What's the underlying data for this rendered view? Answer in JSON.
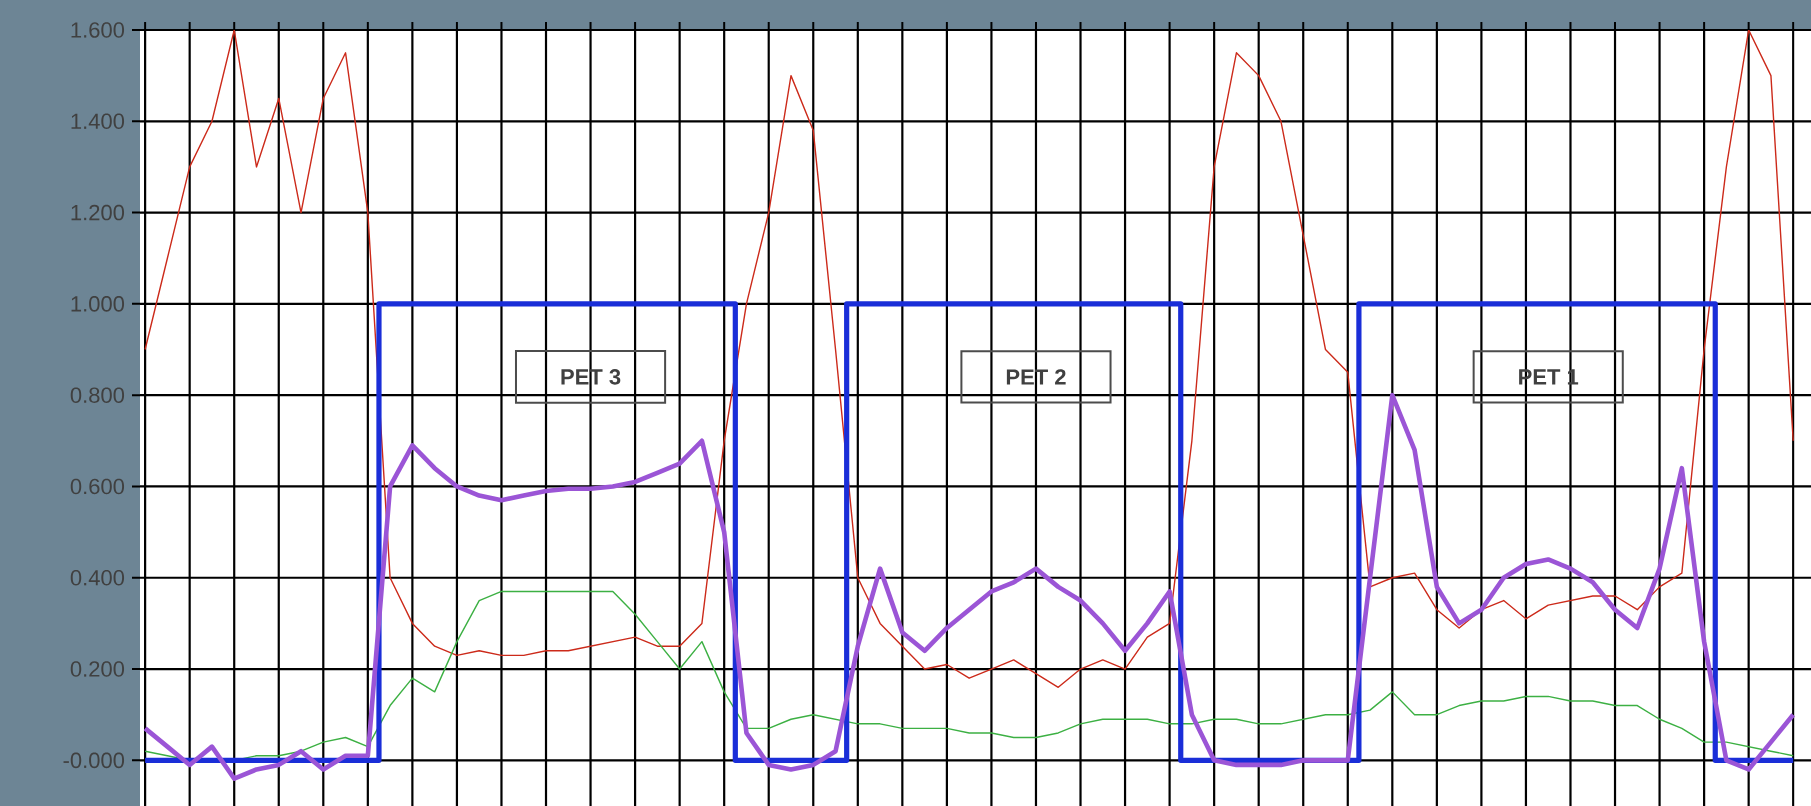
{
  "chart_data": {
    "type": "line",
    "categories": [
      null,
      null,
      null,
      null,
      null,
      null,
      null,
      null,
      null,
      null,
      null,
      null,
      null,
      null,
      null,
      null,
      null,
      null,
      null,
      null,
      null,
      null,
      null,
      null,
      null,
      null,
      null,
      null,
      null,
      null,
      null,
      null,
      null,
      null,
      null,
      null,
      null,
      null,
      null,
      null,
      null,
      null,
      null,
      null,
      null,
      null,
      null,
      null,
      null,
      null,
      null,
      null,
      null,
      null,
      null,
      null,
      null,
      null,
      null,
      null,
      null,
      null,
      null,
      null,
      null,
      null,
      null,
      null,
      null,
      null,
      null,
      null,
      null,
      null,
      null
    ],
    "series": [
      {
        "color": "#cc2a1a",
        "values": [
          0.9,
          1.1,
          1.3,
          1.4,
          1.6,
          1.3,
          1.45,
          1.2,
          1.45,
          1.55,
          1.2,
          0.4,
          0.3,
          0.25,
          0.23,
          0.24,
          0.23,
          0.23,
          0.24,
          0.24,
          0.25,
          0.26,
          0.27,
          0.25,
          0.25,
          0.3,
          0.7,
          1.0,
          1.2,
          1.5,
          1.38,
          0.9,
          0.4,
          0.3,
          0.25,
          0.2,
          0.21,
          0.18,
          0.2,
          0.22,
          0.19,
          0.16,
          0.2,
          0.22,
          0.2,
          0.27,
          0.3,
          0.7,
          1.3,
          1.55,
          1.5,
          1.4,
          1.15,
          0.9,
          0.85,
          0.38,
          0.4,
          0.41,
          0.33,
          0.29,
          0.33,
          0.35,
          0.31,
          0.34,
          0.35,
          0.36,
          0.36,
          0.33,
          0.38,
          0.41,
          0.9,
          1.3,
          1.6,
          1.5,
          0.7
        ]
      },
      {
        "color": "#3cb043",
        "values": [
          0.02,
          0.01,
          0.0,
          0.0,
          0.0,
          0.01,
          0.01,
          0.02,
          0.04,
          0.05,
          0.03,
          0.12,
          0.18,
          0.15,
          0.26,
          0.35,
          0.37,
          0.37,
          0.37,
          0.37,
          0.37,
          0.37,
          0.32,
          0.26,
          0.2,
          0.26,
          0.15,
          0.07,
          0.07,
          0.09,
          0.1,
          0.09,
          0.08,
          0.08,
          0.07,
          0.07,
          0.07,
          0.06,
          0.06,
          0.05,
          0.05,
          0.06,
          0.08,
          0.09,
          0.09,
          0.09,
          0.08,
          0.08,
          0.09,
          0.09,
          0.08,
          0.08,
          0.09,
          0.1,
          0.1,
          0.11,
          0.15,
          0.1,
          0.1,
          0.12,
          0.13,
          0.13,
          0.14,
          0.14,
          0.13,
          0.13,
          0.12,
          0.12,
          0.09,
          0.07,
          0.04,
          0.04,
          0.03,
          0.02,
          0.01
        ]
      },
      {
        "type": "step",
        "color": "#1a2ed8",
        "values": [
          0,
          0,
          0,
          0,
          0,
          0,
          0,
          0,
          0,
          0,
          0,
          1,
          1,
          1,
          1,
          1,
          1,
          1,
          1,
          1,
          1,
          1,
          1,
          1,
          1,
          1,
          1,
          0,
          0,
          0,
          0,
          0,
          1,
          1,
          1,
          1,
          1,
          1,
          1,
          1,
          1,
          1,
          1,
          1,
          1,
          1,
          1,
          0,
          0,
          0,
          0,
          0,
          0,
          0,
          0,
          1,
          1,
          1,
          1,
          1,
          1,
          1,
          1,
          1,
          1,
          1,
          1,
          1,
          1,
          1,
          1,
          0,
          0,
          0,
          0
        ]
      },
      {
        "color": "#9b55d6",
        "values": [
          0.07,
          0.03,
          -0.01,
          0.03,
          -0.04,
          -0.02,
          -0.01,
          0.02,
          -0.02,
          0.01,
          0.01,
          0.6,
          0.69,
          0.64,
          0.6,
          0.58,
          0.57,
          0.58,
          0.59,
          0.595,
          0.595,
          0.6,
          0.61,
          0.63,
          0.65,
          0.7,
          0.5,
          0.06,
          -0.01,
          -0.02,
          -0.01,
          0.02,
          0.25,
          0.42,
          0.28,
          0.24,
          0.29,
          0.33,
          0.37,
          0.39,
          0.42,
          0.38,
          0.35,
          0.3,
          0.24,
          0.3,
          0.37,
          0.1,
          0.0,
          -0.01,
          -0.01,
          -0.01,
          0.0,
          0.0,
          0.0,
          0.4,
          0.8,
          0.68,
          0.38,
          0.3,
          0.33,
          0.4,
          0.43,
          0.44,
          0.42,
          0.39,
          0.33,
          0.29,
          0.42,
          0.64,
          0.26,
          0.0,
          -0.02,
          0.04,
          0.1
        ]
      }
    ],
    "ylim": [
      -0.1,
      1.6
    ],
    "yticks": [
      {
        "value": 0,
        "label": "-0.000"
      },
      {
        "value": 0.2,
        "label": "0.200"
      },
      {
        "value": 0.4,
        "label": "0.400"
      },
      {
        "value": 0.6,
        "label": "0.600"
      },
      {
        "value": 0.8,
        "label": "0.800"
      },
      {
        "value": 1.0,
        "label": "1.000"
      },
      {
        "value": 1.2,
        "label": "1.200"
      },
      {
        "value": 1.4,
        "label": "1.400"
      },
      {
        "value": 1.6,
        "label": "1.600"
      }
    ],
    "annotations": [
      "PET 3",
      "PET 2",
      "PET 1"
    ],
    "grid": true,
    "tick_labels": "y",
    "marker": "none",
    "line_style": "solid"
  }
}
